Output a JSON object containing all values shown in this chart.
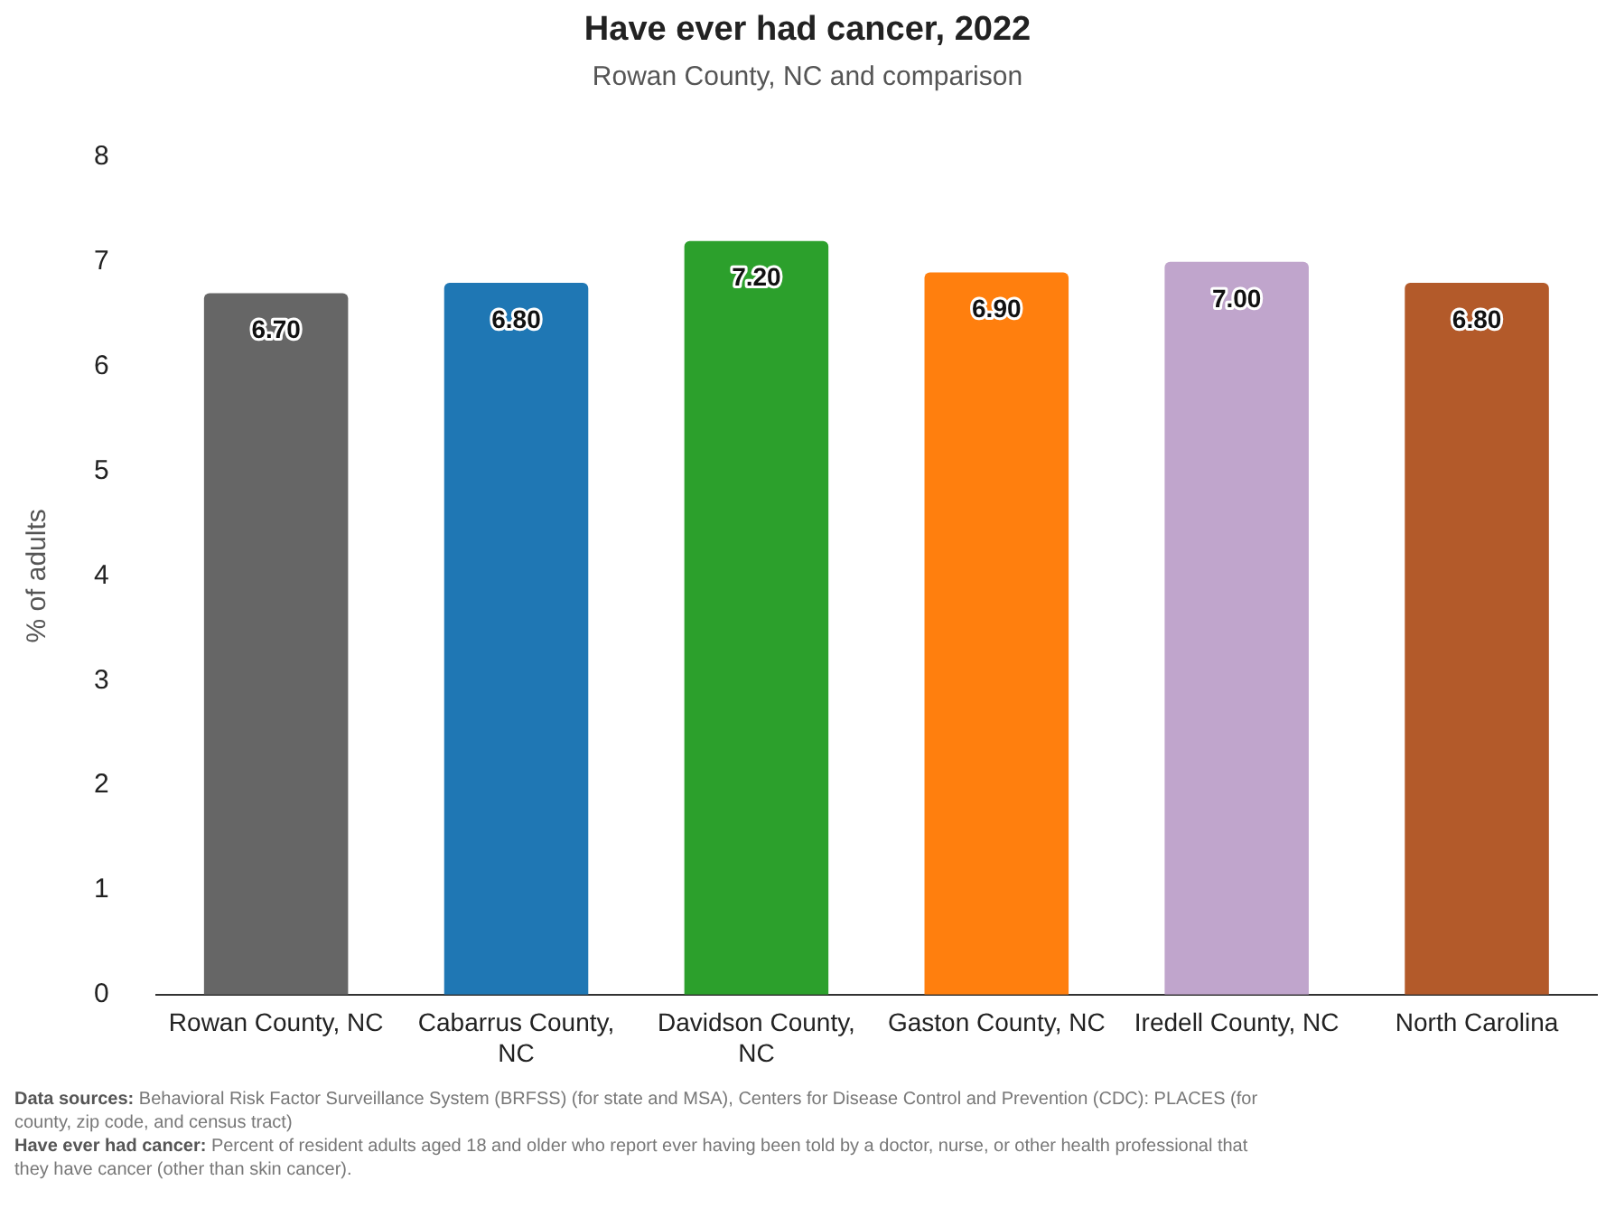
{
  "chart_data": {
    "type": "bar",
    "title": "Have ever had cancer, 2022",
    "subtitle": "Rowan County, NC and comparison",
    "ylabel": "% of adults",
    "categories": [
      "Rowan County, NC",
      "Cabarrus County, NC",
      "Davidson County, NC",
      "Gaston County, NC",
      "Iredell County, NC",
      "North Carolina"
    ],
    "values": [
      6.7,
      6.8,
      7.2,
      6.9,
      7.0,
      6.8
    ],
    "value_labels": [
      "6.70",
      "6.80",
      "7.20",
      "6.90",
      "7.00",
      "6.80"
    ],
    "colors": [
      "#666666",
      "#1f77b4",
      "#2ca02c",
      "#ff7f0e",
      "#c0a5cc",
      "#b35a2a"
    ],
    "ylim": [
      0,
      8
    ],
    "yticks": [
      0,
      1,
      2,
      3,
      4,
      5,
      6,
      7,
      8
    ],
    "grid": false,
    "legend": false,
    "annotations": [
      "Data sources: Behavioral Risk Factor Surveillance System (BRFSS) (for state and MSA), Centers for Disease Control and Prevention (CDC): PLACES (for county, zip code, and census tract)",
      "Have ever had cancer: Percent of resident adults aged 18 and older who report ever having been told by a doctor, nurse, or other health professional that they have cancer (other than skin cancer)."
    ]
  }
}
